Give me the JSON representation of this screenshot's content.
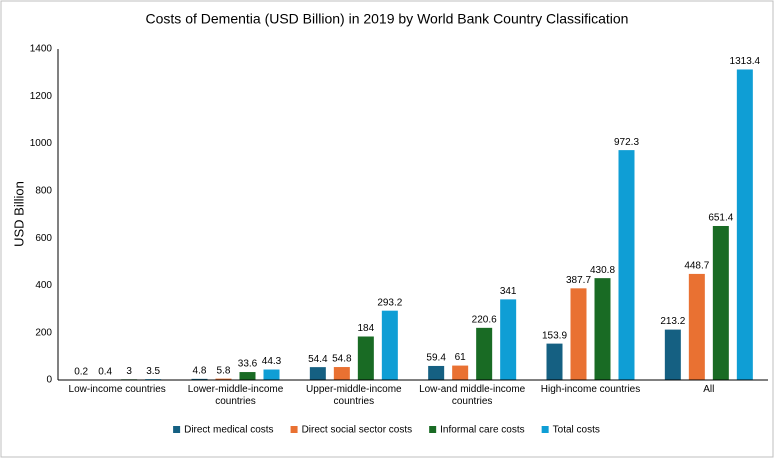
{
  "chart_data": {
    "type": "bar",
    "title": "Costs of Dementia (USD Billion) in 2019 by World Bank Country Classification",
    "y_label": "USD Billion",
    "categories": [
      "Low-income countries",
      "Lower-middle-income countries",
      "Upper-middle-income countries",
      "Low-and middle-income countries",
      "High-income countries",
      "All"
    ],
    "series": [
      {
        "name": "Direct medical costs",
        "color": "#156082",
        "values": [
          0.2,
          4.8,
          54.4,
          59.4,
          153.9,
          213.2
        ]
      },
      {
        "name": "Direct social sector costs",
        "color": "#E97132",
        "values": [
          0.4,
          5.8,
          54.8,
          61,
          387.7,
          448.7
        ]
      },
      {
        "name": "Informal care costs",
        "color": "#196B24",
        "values": [
          3,
          33.6,
          184,
          220.6,
          430.8,
          651.4
        ]
      },
      {
        "name": "Total costs",
        "color": "#0F9ED5",
        "values": [
          3.5,
          44.3,
          293.2,
          341,
          972.3,
          1313.4
        ]
      }
    ],
    "ylim": [
      0,
      1400
    ],
    "yticks": [
      0,
      200,
      400,
      600,
      800,
      1000,
      1200,
      1400
    ],
    "grid": false,
    "legend": "bottom"
  }
}
